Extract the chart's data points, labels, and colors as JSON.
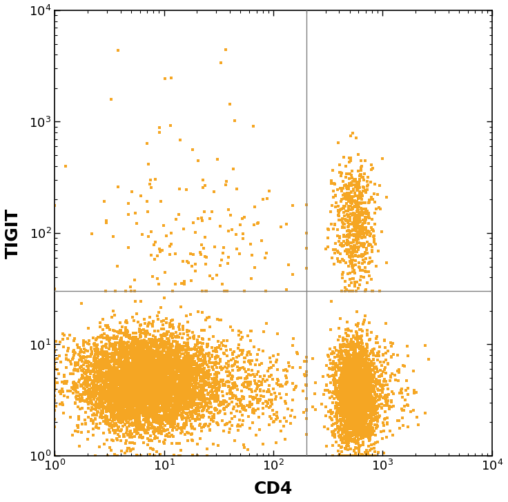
{
  "xlabel": "CD4",
  "ylabel": "TIGIT",
  "xlim": [
    1,
    10000
  ],
  "ylim": [
    1,
    10000
  ],
  "dot_color": "#F5A623",
  "dot_size": 9,
  "gate_x": 200,
  "gate_y": 30,
  "line_color": "#808080",
  "line_width": 1.0,
  "xlabel_fontsize": 18,
  "ylabel_fontsize": 18,
  "tick_fontsize": 13,
  "background_color": "#ffffff",
  "seed": 42
}
